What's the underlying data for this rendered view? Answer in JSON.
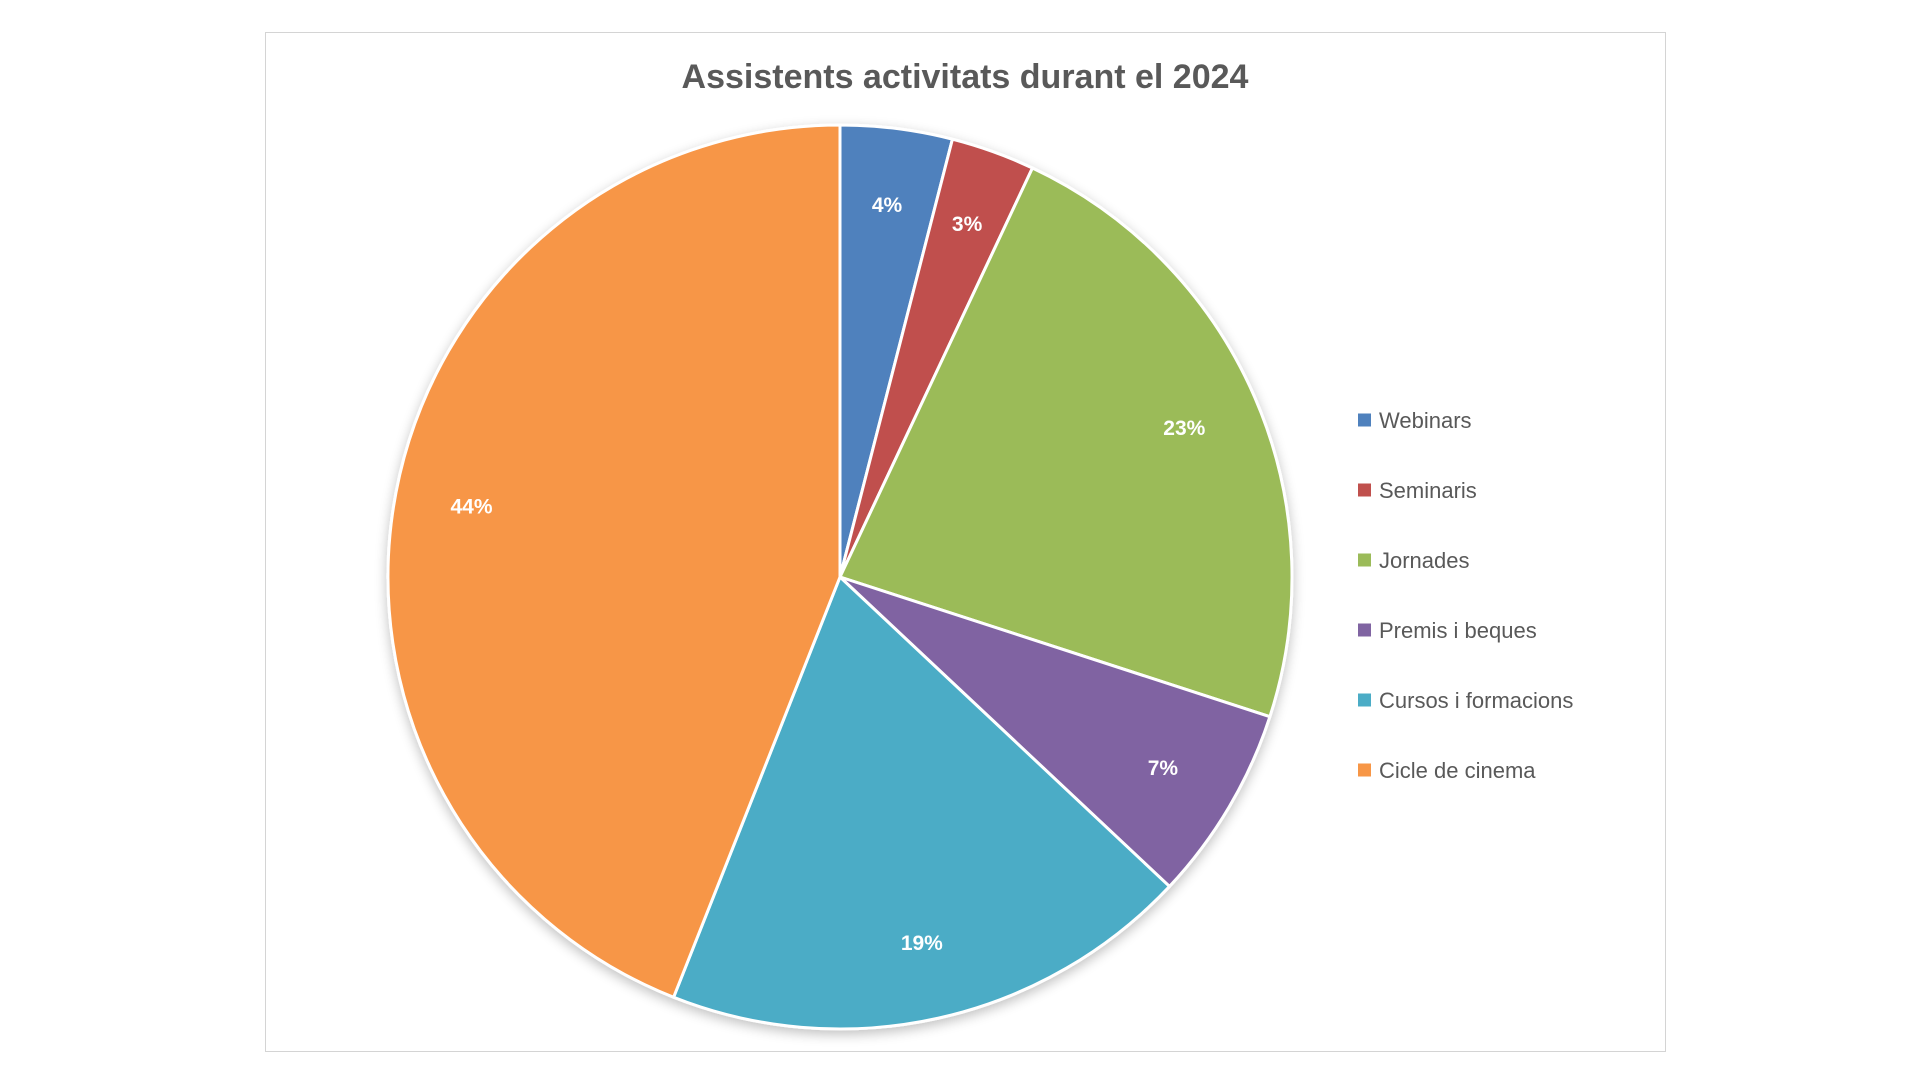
{
  "chart_data": {
    "type": "pie",
    "title": "Assistents activitats durant el 2024",
    "categories": [
      "Webinars",
      "Seminaris",
      "Jornades",
      "Premis i beques",
      "Cursos i formacions",
      "Cicle de cinema"
    ],
    "values": [
      4,
      3,
      23,
      7,
      19,
      44
    ],
    "labels": [
      "4%",
      "3%",
      "23%",
      "7%",
      "19%",
      "44%"
    ],
    "colors": [
      "#4F81BD",
      "#C0504D",
      "#9BBB59",
      "#8064A2",
      "#4BACC6",
      "#F79646"
    ],
    "start_angle_deg": 0,
    "direction": "clockwise",
    "legend_position": "right",
    "show_data_labels": true
  }
}
